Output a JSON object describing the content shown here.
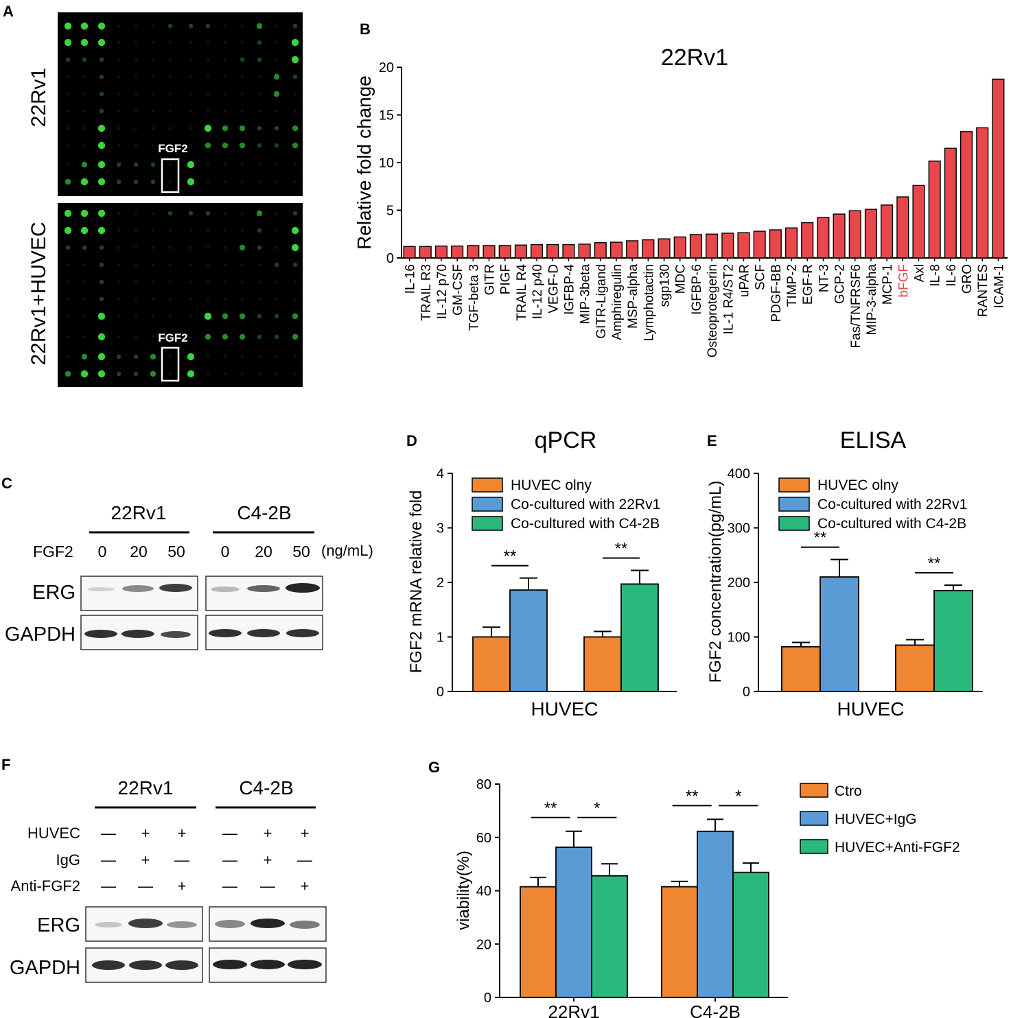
{
  "panel_labels": {
    "a": "A",
    "b": "B",
    "c": "C",
    "d": "D",
    "e": "E",
    "f": "F",
    "g": "G"
  },
  "colors": {
    "red": "#e8474b",
    "orange": "#ee8632",
    "blue": "#5b9bd5",
    "green": "#2bb87c",
    "dot": "#3bd43b",
    "highlight": "#e8474b"
  },
  "panel_a": {
    "row_labels": [
      "22Rv1",
      "22Rv1+HUVEC"
    ],
    "box_label": "FGF2"
  },
  "chart_data": [
    {
      "id": "B",
      "type": "bar",
      "title": "22Rv1",
      "ylabel": "Relative fold change",
      "xlabel": "",
      "ylim": [
        0,
        20
      ],
      "yticks": [
        0,
        5,
        10,
        15,
        20
      ],
      "highlight": "bFGF",
      "categories": [
        "IL-16",
        "TRAIL R3",
        "IL-12 p70",
        "GM-CSF",
        "TGF-beta 3",
        "GITR",
        "PIGF",
        "TRAIL R4",
        "IL-12 p40",
        "VEGF-D",
        "IGFBP-4",
        "MIP-3beta",
        "GITR-Ligand",
        "Amphiregulin",
        "MSP-alpha",
        "Lymphotactin",
        "sgp130",
        "MDC",
        "IGFBP-6",
        "Osteoprotegerin",
        "IL-1 R4/ST2",
        "uPAR",
        "SCF",
        "PDGF-BB",
        "TIMP-2",
        "EGF-R",
        "NT-3",
        "GCP-2",
        "Fas/TNFRSF6",
        "MIP-3-alpha",
        "MCP-1",
        "bFGF",
        "Axl",
        "IL-8",
        "IL-6",
        "GRO",
        "RANTES",
        "ICAM-1"
      ],
      "values": [
        1.2,
        1.2,
        1.25,
        1.25,
        1.3,
        1.3,
        1.3,
        1.35,
        1.4,
        1.4,
        1.4,
        1.45,
        1.6,
        1.65,
        1.8,
        1.9,
        2.0,
        2.2,
        2.45,
        2.5,
        2.6,
        2.65,
        2.8,
        2.95,
        3.15,
        3.7,
        4.25,
        4.6,
        4.95,
        5.1,
        5.55,
        6.4,
        7.6,
        10.15,
        11.5,
        13.25,
        13.65,
        18.75
      ]
    },
    {
      "id": "D",
      "type": "bar",
      "title": "qPCR",
      "ylabel": "FGF2 mRNA relative fold",
      "xlabel": "HUVEC",
      "ylim": [
        0,
        4
      ],
      "yticks": [
        0,
        1,
        2,
        3,
        4
      ],
      "legend": [
        "HUVEC olny",
        "Co-cultured with 22Rv1",
        "Co-cultured with C4-2B"
      ],
      "groups": [
        {
          "bars": [
            {
              "series": 0,
              "value": 1.0,
              "err": 0.18
            },
            {
              "series": 1,
              "value": 1.86,
              "err": 0.22
            }
          ],
          "sig": "**"
        },
        {
          "bars": [
            {
              "series": 0,
              "value": 1.0,
              "err": 0.1
            },
            {
              "series": 2,
              "value": 1.97,
              "err": 0.25
            }
          ],
          "sig": "**"
        }
      ]
    },
    {
      "id": "E",
      "type": "bar",
      "title": "ELISA",
      "ylabel": "FGF2 concentration(pg/mL)",
      "xlabel": "HUVEC",
      "ylim": [
        0,
        400
      ],
      "yticks": [
        0,
        100,
        200,
        300,
        400
      ],
      "legend": [
        "HUVEC olny",
        "Co-cultured with 22Rv1",
        "Co-cultured with C4-2B"
      ],
      "groups": [
        {
          "bars": [
            {
              "series": 0,
              "value": 82,
              "err": 8
            },
            {
              "series": 1,
              "value": 210,
              "err": 32
            }
          ],
          "sig": "**"
        },
        {
          "bars": [
            {
              "series": 0,
              "value": 85,
              "err": 10
            },
            {
              "series": 2,
              "value": 185,
              "err": 10
            }
          ],
          "sig": "**"
        }
      ]
    },
    {
      "id": "G",
      "type": "bar",
      "title": "",
      "ylabel": "viability(%)",
      "xlabel": "",
      "ylim": [
        0,
        80
      ],
      "yticks": [
        0,
        20,
        40,
        60,
        80
      ],
      "legend": [
        "Ctro",
        "HUVEC+IgG",
        "HUVEC+Anti-FGF2"
      ],
      "categories": [
        "22Rv1",
        "C4-2B"
      ],
      "series": [
        {
          "name": "Ctro",
          "values": [
            41.5,
            41.5
          ],
          "err": [
            3.5,
            2.0
          ]
        },
        {
          "name": "HUVEC+IgG",
          "values": [
            56.3,
            62.3
          ],
          "err": [
            6.0,
            4.5
          ]
        },
        {
          "name": "HUVEC+Anti-FGF2",
          "values": [
            45.6,
            46.9
          ],
          "err": [
            4.5,
            3.5
          ]
        }
      ],
      "sig": [
        [
          "**",
          "*"
        ],
        [
          "**",
          "*"
        ]
      ]
    }
  ],
  "panel_c": {
    "groups": [
      "22Rv1",
      "C4-2B"
    ],
    "treatment_label": "FGF2",
    "doses": [
      "0",
      "20",
      "50",
      "0",
      "20",
      "50"
    ],
    "unit": "(ng/mL)",
    "blot_rows": [
      "ERG",
      "GAPDH"
    ]
  },
  "panel_f": {
    "groups": [
      "22Rv1",
      "C4-2B"
    ],
    "conditions": [
      {
        "label": "HUVEC",
        "marks": [
          "—",
          "+",
          "+",
          "—",
          "+",
          "+"
        ]
      },
      {
        "label": "IgG",
        "marks": [
          "—",
          "+",
          "—",
          "—",
          "+",
          "—"
        ]
      },
      {
        "label": "Anti-FGF2",
        "marks": [
          "—",
          "—",
          "+",
          "—",
          "—",
          "+"
        ]
      }
    ],
    "blot_rows": [
      "ERG",
      "GAPDH"
    ]
  }
}
